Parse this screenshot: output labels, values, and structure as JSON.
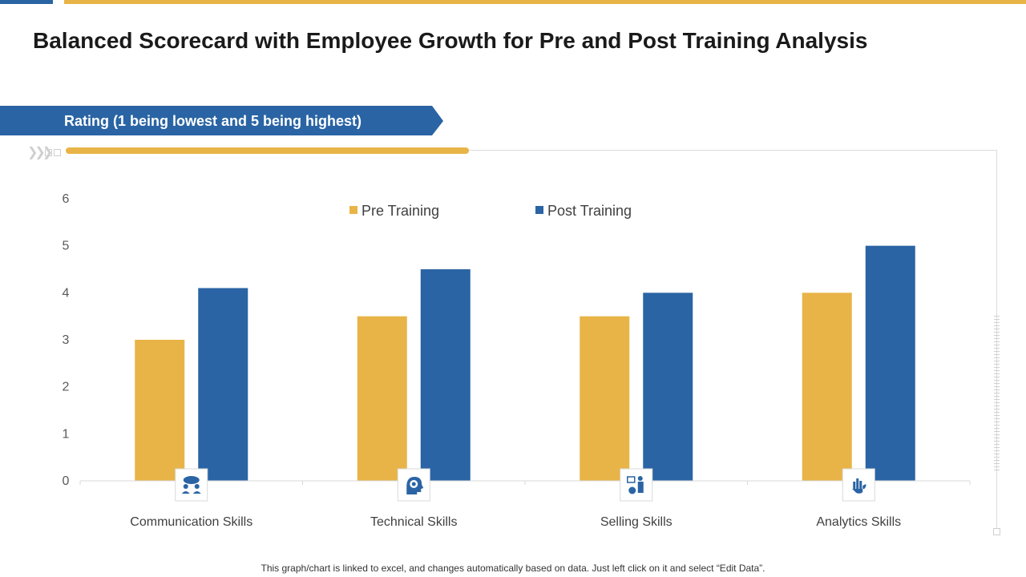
{
  "title": "Balanced Scorecard with Employee Growth for Pre and Post Training Analysis",
  "banner": "Rating (1 being lowest and 5 being highest)",
  "footnote": "This graph/chart is linked to excel, and changes automatically based on data. Just left click on it and select “Edit Data”.",
  "colors": {
    "pre": "#e8b447",
    "post": "#2a64a4",
    "accent_gold": "#e8b447",
    "accent_blue": "#2a64a4"
  },
  "category_icons": [
    "team-communication-icon",
    "idea-gear-icon",
    "seller-presentation-icon",
    "analytics-hand-icon"
  ],
  "chart_data": {
    "type": "bar",
    "categories": [
      "Communication Skills",
      "Technical Skills",
      "Selling Skills",
      "Analytics Skills"
    ],
    "series": [
      {
        "name": "Pre Training",
        "values": [
          3,
          3.5,
          3.5,
          4
        ]
      },
      {
        "name": "Post Training",
        "values": [
          4.1,
          4.5,
          4,
          5
        ]
      }
    ],
    "yticks": [
      "0",
      "1",
      "2",
      "3",
      "4",
      "5",
      "6"
    ],
    "ylim": [
      0,
      6
    ],
    "grid": false,
    "legend": "top-center"
  }
}
